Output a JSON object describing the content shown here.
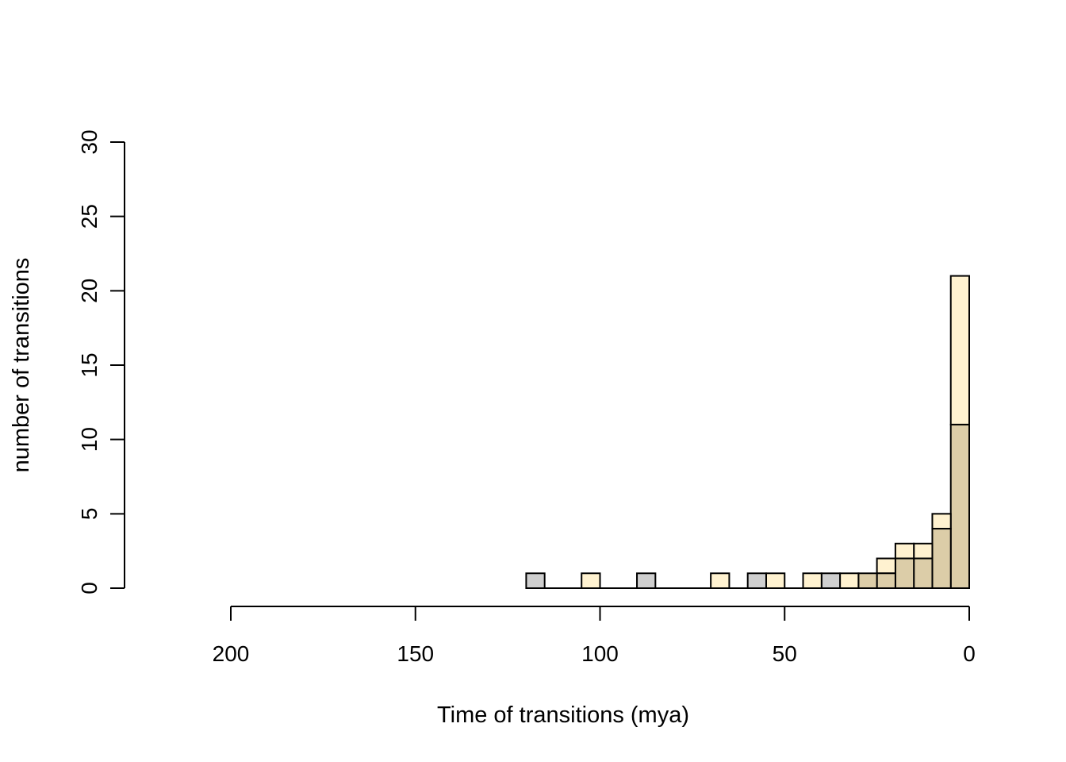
{
  "chart_data": {
    "type": "bar",
    "title": "",
    "xlabel": "Time of transitions (mya)",
    "ylabel": "number of transitions",
    "x_reversed": true,
    "xlim": [
      0,
      200
    ],
    "ylim": [
      0,
      30
    ],
    "x_ticks": [
      200,
      150,
      100,
      50,
      0
    ],
    "y_ticks": [
      0,
      5,
      10,
      15,
      20,
      25,
      30
    ],
    "x_tick_labels": [
      "200",
      "150",
      "100",
      "50",
      "0"
    ],
    "y_tick_labels": [
      "0",
      "5",
      "10",
      "15",
      "20",
      "25",
      "30"
    ],
    "bin_width": 5,
    "grid": false,
    "colors": {
      "series_a": "#fff2d0",
      "series_b": "#cfcfcf",
      "overlap": "#dccda8",
      "stroke": "#000000"
    },
    "series": [
      {
        "bins": [
          {
            "x0": 0,
            "x1": 5,
            "value": 21
          },
          {
            "x0": 5,
            "x1": 10,
            "value": 5
          },
          {
            "x0": 10,
            "x1": 15,
            "value": 3
          },
          {
            "x0": 15,
            "x1": 20,
            "value": 3
          },
          {
            "x0": 20,
            "x1": 25,
            "value": 2
          },
          {
            "x0": 25,
            "x1": 30,
            "value": 1
          },
          {
            "x0": 30,
            "x1": 35,
            "value": 1
          },
          {
            "x0": 40,
            "x1": 45,
            "value": 1
          },
          {
            "x0": 50,
            "x1": 55,
            "value": 1
          },
          {
            "x0": 65,
            "x1": 70,
            "value": 1
          },
          {
            "x0": 100,
            "x1": 105,
            "value": 1
          }
        ]
      },
      {
        "bins": [
          {
            "x0": 0,
            "x1": 5,
            "value": 11
          },
          {
            "x0": 5,
            "x1": 10,
            "value": 4
          },
          {
            "x0": 10,
            "x1": 15,
            "value": 2
          },
          {
            "x0": 15,
            "x1": 20,
            "value": 2
          },
          {
            "x0": 20,
            "x1": 25,
            "value": 1
          },
          {
            "x0": 25,
            "x1": 30,
            "value": 1
          },
          {
            "x0": 35,
            "x1": 40,
            "value": 1
          },
          {
            "x0": 55,
            "x1": 60,
            "value": 1
          },
          {
            "x0": 85,
            "x1": 90,
            "value": 1
          },
          {
            "x0": 115,
            "x1": 120,
            "value": 1
          }
        ]
      }
    ]
  }
}
